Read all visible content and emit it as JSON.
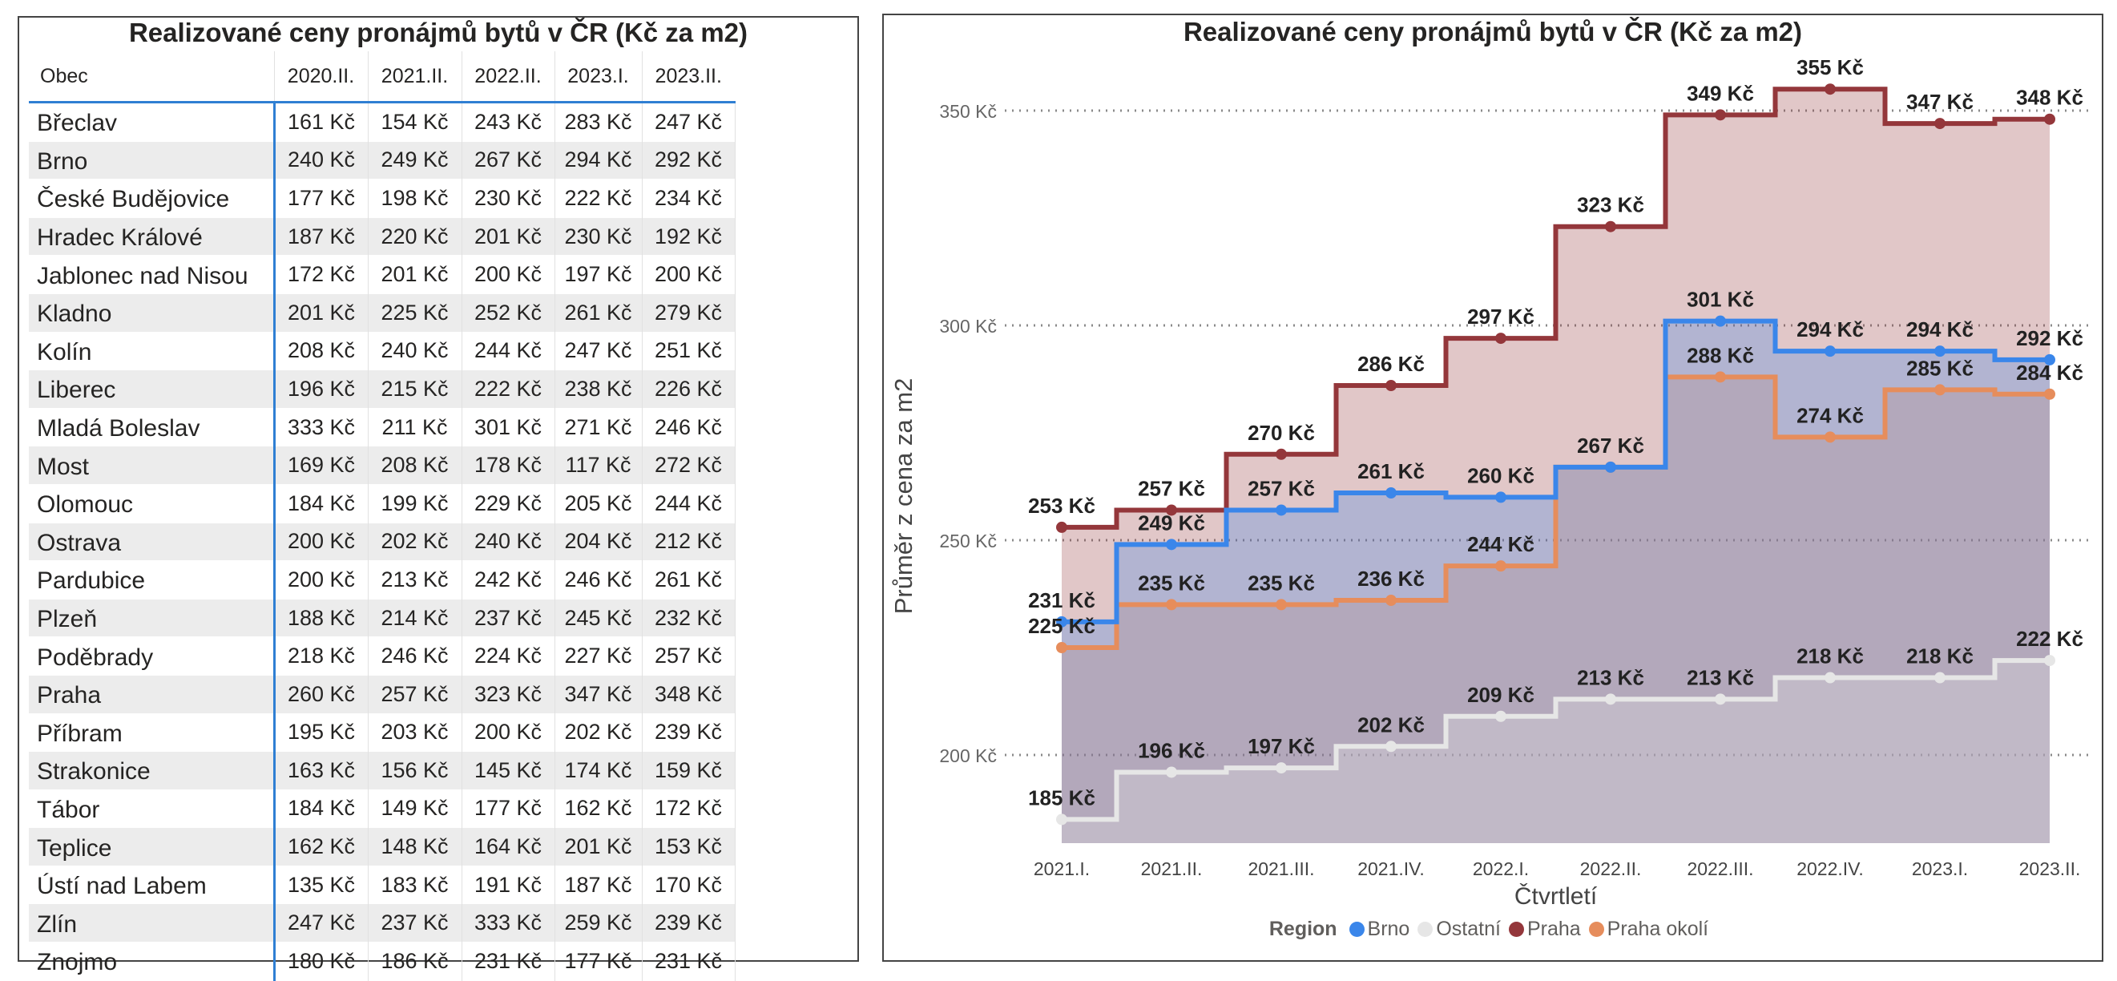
{
  "table": {
    "title": "Realizované ceny pronájmů bytů v ČR (Kč za m2)",
    "col_header": "Obec",
    "quarters": [
      "2020.II.",
      "2021.II.",
      "2022.II.",
      "2023.I.",
      "2023.II."
    ],
    "rows": [
      {
        "city": "Břeclav",
        "values": [
          "161 Kč",
          "154 Kč",
          "243 Kč",
          "283 Kč",
          "247 Kč"
        ]
      },
      {
        "city": "Brno",
        "values": [
          "240 Kč",
          "249 Kč",
          "267 Kč",
          "294 Kč",
          "292 Kč"
        ]
      },
      {
        "city": "České Budějovice",
        "values": [
          "177 Kč",
          "198 Kč",
          "230 Kč",
          "222 Kč",
          "234 Kč"
        ]
      },
      {
        "city": "Hradec Králové",
        "values": [
          "187 Kč",
          "220 Kč",
          "201 Kč",
          "230 Kč",
          "192 Kč"
        ]
      },
      {
        "city": "Jablonec nad Nisou",
        "values": [
          "172 Kč",
          "201 Kč",
          "200 Kč",
          "197 Kč",
          "200 Kč"
        ]
      },
      {
        "city": "Kladno",
        "values": [
          "201 Kč",
          "225 Kč",
          "252 Kč",
          "261 Kč",
          "279 Kč"
        ]
      },
      {
        "city": "Kolín",
        "values": [
          "208 Kč",
          "240 Kč",
          "244 Kč",
          "247 Kč",
          "251 Kč"
        ]
      },
      {
        "city": "Liberec",
        "values": [
          "196 Kč",
          "215 Kč",
          "222 Kč",
          "238 Kč",
          "226 Kč"
        ]
      },
      {
        "city": "Mladá Boleslav",
        "values": [
          "333 Kč",
          "211 Kč",
          "301 Kč",
          "271 Kč",
          "246 Kč"
        ]
      },
      {
        "city": "Most",
        "values": [
          "169 Kč",
          "208 Kč",
          "178 Kč",
          "117 Kč",
          "272 Kč"
        ]
      },
      {
        "city": "Olomouc",
        "values": [
          "184 Kč",
          "199 Kč",
          "229 Kč",
          "205 Kč",
          "244 Kč"
        ]
      },
      {
        "city": "Ostrava",
        "values": [
          "200 Kč",
          "202 Kč",
          "240 Kč",
          "204 Kč",
          "212 Kč"
        ]
      },
      {
        "city": "Pardubice",
        "values": [
          "200 Kč",
          "213 Kč",
          "242 Kč",
          "246 Kč",
          "261 Kč"
        ]
      },
      {
        "city": "Plzeň",
        "values": [
          "188 Kč",
          "214 Kč",
          "237 Kč",
          "245 Kč",
          "232 Kč"
        ]
      },
      {
        "city": "Poděbrady",
        "values": [
          "218 Kč",
          "246 Kč",
          "224 Kč",
          "227 Kč",
          "257 Kč"
        ]
      },
      {
        "city": "Praha",
        "values": [
          "260 Kč",
          "257 Kč",
          "323 Kč",
          "347 Kč",
          "348 Kč"
        ]
      },
      {
        "city": "Příbram",
        "values": [
          "195 Kč",
          "203 Kč",
          "200 Kč",
          "202 Kč",
          "239 Kč"
        ]
      },
      {
        "city": "Strakonice",
        "values": [
          "163 Kč",
          "156 Kč",
          "145 Kč",
          "174 Kč",
          "159 Kč"
        ]
      },
      {
        "city": "Tábor",
        "values": [
          "184 Kč",
          "149 Kč",
          "177 Kč",
          "162 Kč",
          "172 Kč"
        ]
      },
      {
        "city": "Teplice",
        "values": [
          "162 Kč",
          "148 Kč",
          "164 Kč",
          "201 Kč",
          "153 Kč"
        ]
      },
      {
        "city": "Ústí nad Labem",
        "values": [
          "135 Kč",
          "183 Kč",
          "191 Kč",
          "187 Kč",
          "170 Kč"
        ]
      },
      {
        "city": "Zlín",
        "values": [
          "247 Kč",
          "237 Kč",
          "333 Kč",
          "259 Kč",
          "239 Kč"
        ]
      },
      {
        "city": "Znojmo",
        "values": [
          "180 Kč",
          "186 Kč",
          "231 Kč",
          "177 Kč",
          "231 Kč"
        ]
      }
    ]
  },
  "chart_data": {
    "type": "area",
    "title": "Realizované ceny pronájmů bytů v ČR (Kč za m2)",
    "xlabel": "Čtvrtletí",
    "ylabel": "Průměr z cena za m2",
    "categories": [
      "2021.I.",
      "2021.II.",
      "2021.III.",
      "2021.IV.",
      "2022.I.",
      "2022.II.",
      "2022.III.",
      "2022.IV.",
      "2023.I.",
      "2023.II."
    ],
    "y_ticks": [
      200,
      250,
      300,
      350
    ],
    "y_tick_suffix": " Kč",
    "ylim": [
      180,
      362
    ],
    "step": true,
    "legend_title": "Region",
    "legend_position": "bottom",
    "series": [
      {
        "name": "Brno",
        "color": "#3a86ea",
        "values": [
          231,
          249,
          257,
          261,
          260,
          267,
          301,
          294,
          294,
          292
        ],
        "labels": [
          "231 Kč",
          "249 Kč",
          "257 Kč",
          "261 Kč",
          "260 Kč",
          "",
          "301 Kč",
          "294 Kč",
          "294 Kč",
          "292 Kč"
        ]
      },
      {
        "name": "Ostatní",
        "color": "#e6e6e6",
        "values": [
          185,
          196,
          197,
          202,
          209,
          213,
          213,
          218,
          218,
          222
        ],
        "labels": [
          "185 Kč",
          "196 Kč",
          "197 Kč",
          "202 Kč",
          "209 Kč",
          "213 Kč",
          "213 Kč",
          "218 Kč",
          "218 Kč",
          "222 Kč"
        ]
      },
      {
        "name": "Praha",
        "color": "#94373b",
        "values": [
          253,
          257,
          270,
          286,
          297,
          323,
          349,
          355,
          347,
          348
        ],
        "labels": [
          "253 Kč",
          "257 Kč",
          "270 Kč",
          "286 Kč",
          "297 Kč",
          "323 Kč",
          "349 Kč",
          "355 Kč",
          "347 Kč",
          "348 Kč"
        ]
      },
      {
        "name": "Praha okolí",
        "color": "#e68d5c",
        "values": [
          225,
          235,
          235,
          236,
          244,
          267,
          288,
          274,
          285,
          284
        ],
        "labels": [
          "225 Kč",
          "235 Kč",
          "235 Kč",
          "236 Kč",
          "244 Kč",
          "267 Kč",
          "288 Kč",
          "274 Kč",
          "285 Kč",
          "284 Kč"
        ]
      }
    ]
  }
}
